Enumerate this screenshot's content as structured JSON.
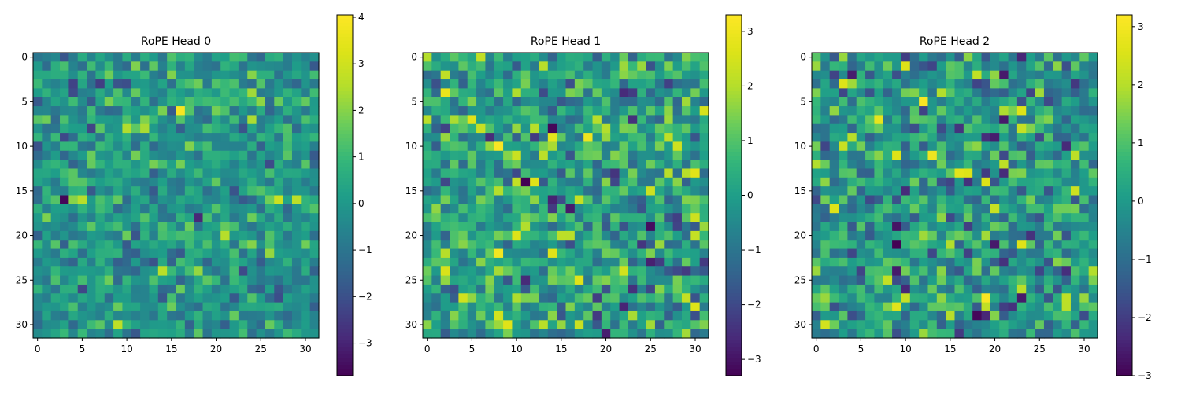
{
  "chart_data": [
    {
      "type": "heatmap",
      "title": "RoPE Head 0",
      "rows": 32,
      "cols": 32,
      "colormap": "viridis",
      "colorbar": {
        "min": -3.7,
        "max": 4.05,
        "ticks": [
          -3,
          -2,
          -1,
          0,
          1,
          2,
          3,
          4
        ]
      },
      "x_ticks": [
        0,
        5,
        10,
        15,
        20,
        25,
        30
      ],
      "y_ticks": [
        0,
        5,
        10,
        15,
        20,
        25,
        30
      ],
      "seed": 11,
      "spread": 0.85,
      "highlights": [
        {
          "row": 6,
          "col": 16,
          "value": 3.9
        },
        {
          "row": 16,
          "col": 3,
          "value": -3.6
        },
        {
          "row": 13,
          "col": 13,
          "value": -1.6
        },
        {
          "row": 24,
          "col": 14,
          "value": 2.6
        },
        {
          "row": 7,
          "col": 24,
          "value": 2.4
        },
        {
          "row": 3,
          "col": 4,
          "value": -2.3
        },
        {
          "row": 4,
          "col": 4,
          "value": -2.1
        },
        {
          "row": 3,
          "col": 9,
          "value": -1.9
        }
      ]
    },
    {
      "type": "heatmap",
      "title": "RoPE Head 1",
      "rows": 32,
      "cols": 32,
      "colormap": "viridis",
      "colorbar": {
        "min": -3.3,
        "max": 3.3,
        "ticks": [
          -3,
          -2,
          -1,
          0,
          1,
          2,
          3
        ]
      },
      "x_ticks": [
        0,
        5,
        10,
        15,
        20,
        25,
        30
      ],
      "y_ticks": [
        0,
        5,
        10,
        15,
        20,
        25,
        30
      ],
      "seed": 23,
      "spread": 1.0,
      "highlights": [
        {
          "row": 10,
          "col": 8,
          "value": 3.2
        },
        {
          "row": 22,
          "col": 8,
          "value": 3.1
        },
        {
          "row": 9,
          "col": 18,
          "value": 3.0
        },
        {
          "row": 4,
          "col": 2,
          "value": 2.9
        },
        {
          "row": 9,
          "col": 14,
          "value": 2.8
        },
        {
          "row": 14,
          "col": 11,
          "value": -3.3
        },
        {
          "row": 8,
          "col": 14,
          "value": -3.2
        },
        {
          "row": 19,
          "col": 25,
          "value": -3.1
        },
        {
          "row": 31,
          "col": 20,
          "value": -2.8
        }
      ]
    },
    {
      "type": "heatmap",
      "title": "RoPE Head 2",
      "rows": 32,
      "cols": 32,
      "colormap": "viridis",
      "colorbar": {
        "min": -3.0,
        "max": 3.2,
        "ticks": [
          -3,
          -2,
          -1,
          0,
          1,
          2,
          3
        ]
      },
      "x_ticks": [
        0,
        5,
        10,
        15,
        20,
        25,
        30
      ],
      "y_ticks": [
        0,
        5,
        10,
        15,
        20,
        25,
        30
      ],
      "seed": 37,
      "spread": 0.95,
      "highlights": [
        {
          "row": 5,
          "col": 12,
          "value": 3.1
        },
        {
          "row": 27,
          "col": 19,
          "value": 3.1
        },
        {
          "row": 11,
          "col": 13,
          "value": 2.9
        },
        {
          "row": 7,
          "col": 7,
          "value": 2.8
        },
        {
          "row": 13,
          "col": 16,
          "value": 2.7
        },
        {
          "row": 13,
          "col": 17,
          "value": 2.6
        },
        {
          "row": 28,
          "col": 9,
          "value": 2.7
        },
        {
          "row": 21,
          "col": 23,
          "value": 2.6
        },
        {
          "row": 21,
          "col": 9,
          "value": -3.0
        },
        {
          "row": 29,
          "col": 18,
          "value": -2.9
        },
        {
          "row": 19,
          "col": 9,
          "value": -2.7
        },
        {
          "row": 2,
          "col": 21,
          "value": -2.6
        }
      ]
    }
  ]
}
